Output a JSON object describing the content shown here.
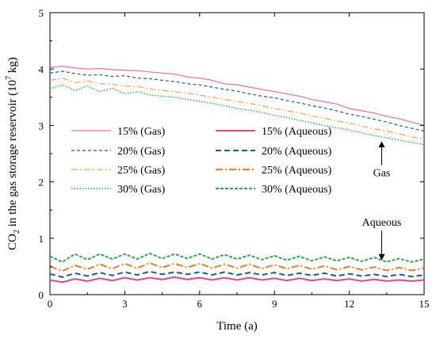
{
  "chart_data": {
    "type": "line",
    "title": "",
    "xlabel": "Time (a)",
    "ylabel_prefix": "CO",
    "ylabel_sub": "2",
    "ylabel_middle": " in the gas storage reservoir (10",
    "ylabel_sup": "7",
    "ylabel_suffix": " kg)",
    "xlim": [
      0,
      15
    ],
    "ylim": [
      0,
      5
    ],
    "xticks": [
      0,
      3,
      6,
      9,
      12,
      15
    ],
    "yticks": [
      0,
      1,
      2,
      3,
      4,
      5
    ],
    "grid": false,
    "legend_placement": "center-left",
    "annotations": [
      {
        "text": "Gas",
        "x": 13.3,
        "y": 2.1,
        "arrow_to": [
          13.3,
          2.75
        ]
      },
      {
        "text": "Aqueous",
        "x": 13.3,
        "y": 1.22,
        "arrow_to": [
          13.3,
          0.58
        ]
      }
    ],
    "x": [
      0,
      0.5,
      1,
      1.5,
      2,
      2.5,
      3,
      3.5,
      4,
      4.5,
      5,
      5.5,
      6,
      6.5,
      7,
      7.5,
      8,
      8.5,
      9,
      9.5,
      10,
      10.5,
      11,
      11.5,
      12,
      12.5,
      13,
      13.5,
      14,
      14.5,
      15
    ],
    "series": [
      {
        "name": "15% (Gas)",
        "color": "#f06a9a",
        "dash": "solid",
        "width": 1.2,
        "values": [
          4.03,
          4.05,
          4.02,
          4.0,
          4.01,
          3.99,
          3.98,
          3.97,
          3.95,
          3.93,
          3.91,
          3.86,
          3.84,
          3.8,
          3.74,
          3.72,
          3.68,
          3.64,
          3.6,
          3.56,
          3.52,
          3.46,
          3.42,
          3.38,
          3.3,
          3.26,
          3.22,
          3.16,
          3.12,
          3.06,
          3.0
        ]
      },
      {
        "name": "20% (Gas)",
        "color": "#1f5a8c",
        "dash": "4,3",
        "width": 1.2,
        "values": [
          3.93,
          3.96,
          3.92,
          3.89,
          3.9,
          3.87,
          3.88,
          3.84,
          3.83,
          3.8,
          3.78,
          3.74,
          3.72,
          3.68,
          3.64,
          3.61,
          3.56,
          3.52,
          3.49,
          3.44,
          3.4,
          3.35,
          3.31,
          3.26,
          3.2,
          3.16,
          3.11,
          3.06,
          3.0,
          2.95,
          2.9
        ]
      },
      {
        "name": "25% (Gas)",
        "color": "#f0a34a",
        "dash": "8,3,2,3",
        "width": 1.2,
        "values": [
          3.8,
          3.84,
          3.76,
          3.79,
          3.74,
          3.73,
          3.7,
          3.69,
          3.65,
          3.62,
          3.6,
          3.57,
          3.54,
          3.5,
          3.46,
          3.43,
          3.39,
          3.35,
          3.3,
          3.26,
          3.22,
          3.17,
          3.13,
          3.08,
          3.04,
          2.99,
          2.94,
          2.9,
          2.85,
          2.8,
          2.75
        ]
      },
      {
        "name": "30% (Gas)",
        "color": "#2aa84a",
        "dash": "1.5,2",
        "width": 1.4,
        "values": [
          3.65,
          3.72,
          3.62,
          3.7,
          3.6,
          3.66,
          3.56,
          3.6,
          3.54,
          3.52,
          3.5,
          3.46,
          3.43,
          3.39,
          3.35,
          3.3,
          3.27,
          3.23,
          3.18,
          3.14,
          3.09,
          3.05,
          3.0,
          2.96,
          2.92,
          2.87,
          2.82,
          2.78,
          2.74,
          2.7,
          2.66
        ]
      },
      {
        "name": "15% (Aqueous)",
        "color": "#e8467c",
        "dash": "solid",
        "width": 2,
        "values": [
          0.26,
          0.22,
          0.28,
          0.24,
          0.29,
          0.25,
          0.3,
          0.26,
          0.3,
          0.27,
          0.31,
          0.27,
          0.3,
          0.26,
          0.3,
          0.26,
          0.3,
          0.26,
          0.29,
          0.25,
          0.29,
          0.25,
          0.28,
          0.25,
          0.28,
          0.24,
          0.27,
          0.24,
          0.26,
          0.24,
          0.26
        ]
      },
      {
        "name": "20% (Aqueous)",
        "color": "#1f5a8c",
        "dash": "7,4",
        "width": 2,
        "values": [
          0.37,
          0.31,
          0.38,
          0.33,
          0.39,
          0.34,
          0.4,
          0.35,
          0.41,
          0.36,
          0.4,
          0.36,
          0.4,
          0.35,
          0.4,
          0.35,
          0.39,
          0.35,
          0.39,
          0.34,
          0.38,
          0.34,
          0.38,
          0.33,
          0.37,
          0.33,
          0.36,
          0.32,
          0.36,
          0.32,
          0.35
        ]
      },
      {
        "name": "25% (Aqueous)",
        "color": "#f07a20",
        "dash": "9,3,2,3",
        "width": 2,
        "values": [
          0.5,
          0.42,
          0.52,
          0.45,
          0.54,
          0.46,
          0.55,
          0.47,
          0.56,
          0.48,
          0.55,
          0.48,
          0.55,
          0.47,
          0.54,
          0.47,
          0.54,
          0.46,
          0.53,
          0.46,
          0.52,
          0.45,
          0.51,
          0.44,
          0.5,
          0.44,
          0.49,
          0.43,
          0.48,
          0.43,
          0.47
        ]
      },
      {
        "name": "30% (Aqueous)",
        "color": "#2aa84a",
        "dash": "4,2",
        "width": 2,
        "values": [
          0.68,
          0.58,
          0.72,
          0.62,
          0.72,
          0.63,
          0.72,
          0.63,
          0.73,
          0.64,
          0.72,
          0.64,
          0.72,
          0.63,
          0.71,
          0.63,
          0.7,
          0.62,
          0.69,
          0.61,
          0.68,
          0.6,
          0.67,
          0.6,
          0.66,
          0.59,
          0.66,
          0.58,
          0.64,
          0.58,
          0.63
        ]
      }
    ]
  }
}
